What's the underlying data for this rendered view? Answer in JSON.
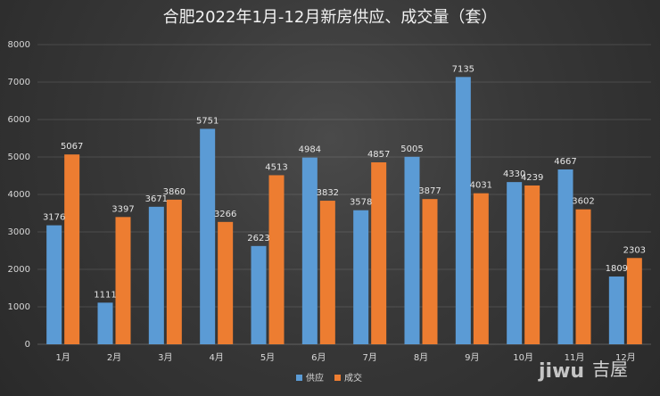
{
  "chart_data": {
    "type": "bar",
    "title": "合肥2022年1月-12月新房供应、成交量（套）",
    "xlabel": "",
    "ylabel": "",
    "categories": [
      "1月",
      "2月",
      "3月",
      "4月",
      "5月",
      "6月",
      "7月",
      "8月",
      "9月",
      "10月",
      "11月",
      "12月"
    ],
    "ylim": [
      0,
      8000
    ],
    "yticks": [
      "0",
      "1000",
      "2000",
      "3000",
      "4000",
      "5000",
      "6000",
      "7000",
      "8000"
    ],
    "series": [
      {
        "name": "供应",
        "color": "#5b9bd5",
        "values": [
          3176,
          1111,
          3671,
          5751,
          2623,
          4984,
          3578,
          5005,
          7135,
          4330,
          4667,
          1809
        ]
      },
      {
        "name": "成交",
        "color": "#ed7d31",
        "values": [
          5067,
          3397,
          3860,
          3266,
          4513,
          3832,
          4857,
          3877,
          4031,
          4239,
          3602,
          2303
        ]
      }
    ],
    "grid": true,
    "legend_position": "bottom"
  },
  "watermark": {
    "brand_text": "jiwu",
    "cn_text": "吉屋"
  }
}
